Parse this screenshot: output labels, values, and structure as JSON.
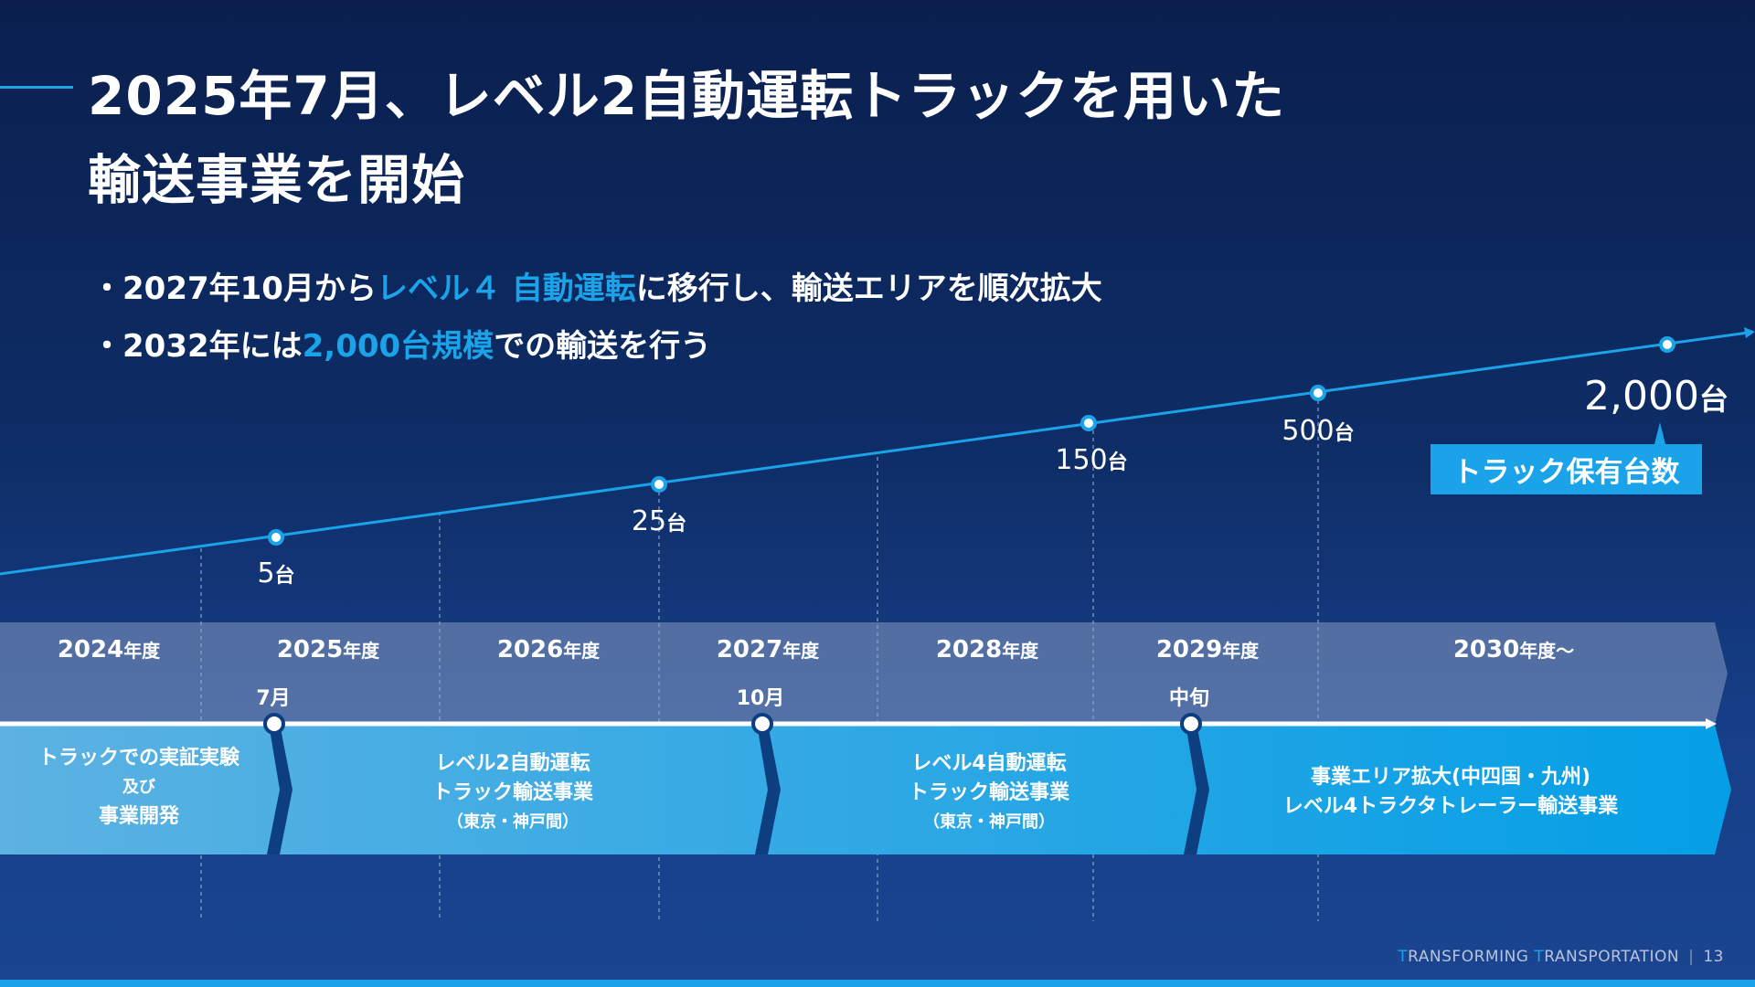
{
  "title": {
    "line1": "2025年7月、レベル2自動運転トラックを用いた",
    "line2": "輸送事業を開始"
  },
  "bullets": [
    {
      "pre": "・2027年10月から",
      "hl": "レベル４ 自動運転",
      "post": "に移行し、輸送エリアを順次拡大"
    },
    {
      "pre": "・2032年には",
      "hl": "2,000台規模",
      "post": "での輸送を行う"
    }
  ],
  "fleet": {
    "label": "トラック保有台数",
    "unit": "台",
    "points": [
      {
        "value": "5"
      },
      {
        "value": "25"
      },
      {
        "value": "150"
      },
      {
        "value": "500"
      },
      {
        "value": "2,000"
      }
    ]
  },
  "years": [
    {
      "y": "2024",
      "u": "年度"
    },
    {
      "y": "2025",
      "u": "年度"
    },
    {
      "y": "2026",
      "u": "年度"
    },
    {
      "y": "2027",
      "u": "年度"
    },
    {
      "y": "2028",
      "u": "年度"
    },
    {
      "y": "2029",
      "u": "年度"
    },
    {
      "y": "2030",
      "u": "年度～"
    }
  ],
  "milestones": [
    "7月",
    "10月",
    "中旬"
  ],
  "phases": [
    {
      "l1": "トラックでの実証実験",
      "l2": "及び",
      "l3": "事業開発"
    },
    {
      "l1": "レベル2自動運転",
      "l2": "トラック輸送事業",
      "l3": "（東京・神戸間）"
    },
    {
      "l1": "レベル4自動運転",
      "l2": "トラック輸送事業",
      "l3": "（東京・神戸間）"
    },
    {
      "l1": "事業エリア拡大(中四国・九州)",
      "l2": "レベル4トラクタトレーラー輸送事業"
    }
  ],
  "footer": {
    "t1": "T",
    "w1": "RANSFORMING ",
    "t2": "T",
    "w2": "RANSPORTATION",
    "page": "13"
  },
  "colors": {
    "accent": "#1aa3e8",
    "navy": "#0a1f4e"
  }
}
